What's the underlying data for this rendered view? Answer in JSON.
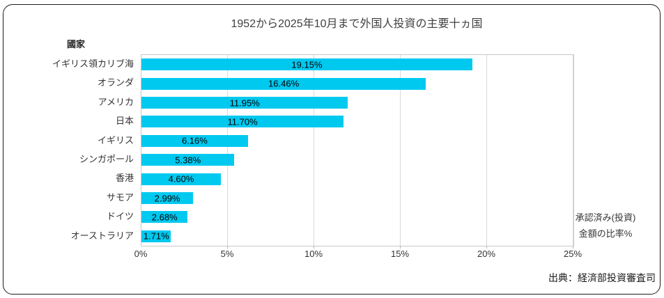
{
  "header": {
    "title": "1952から2025年10月まで外国人投資の主要十ヵ国"
  },
  "y_axis_title": "國家",
  "annotation": {
    "line1": "承認済み(投資)",
    "line2": "金額の比率%"
  },
  "source": "出典：経済部投資審査司",
  "colors": {
    "bar": "#00C9F0",
    "gridline": "#D9D9D9",
    "plot_border": "#C8C8C8",
    "title_text": "#404040",
    "label_text": "#000000"
  },
  "chart_data": {
    "type": "bar",
    "orientation": "horizontal",
    "title": "1952から2025年10月まで外国人投資の主要十ヵ国",
    "ylabel": "國家",
    "xlabel": "",
    "categories": [
      "イギリス領カリブ海",
      "オランダ",
      "アメリカ",
      "日本",
      "イギリス",
      "シンガポール",
      "香港",
      "サモア",
      "ドイツ",
      "オーストラリア"
    ],
    "values": [
      19.15,
      16.46,
      11.95,
      11.7,
      6.16,
      5.38,
      4.6,
      2.99,
      2.68,
      1.71
    ],
    "value_labels": [
      "19.15%",
      "16.46%",
      "11.95%",
      "11.70%",
      "6.16%",
      "5.38%",
      "4.60%",
      "2.99%",
      "2.68%",
      "1.71%"
    ],
    "x_ticks": [
      "0%",
      "5%",
      "10%",
      "15%",
      "20%",
      "25%"
    ],
    "xlim": [
      0,
      25
    ],
    "grid": true,
    "legend_position": "none",
    "value_label_position": "center-of-bar"
  }
}
